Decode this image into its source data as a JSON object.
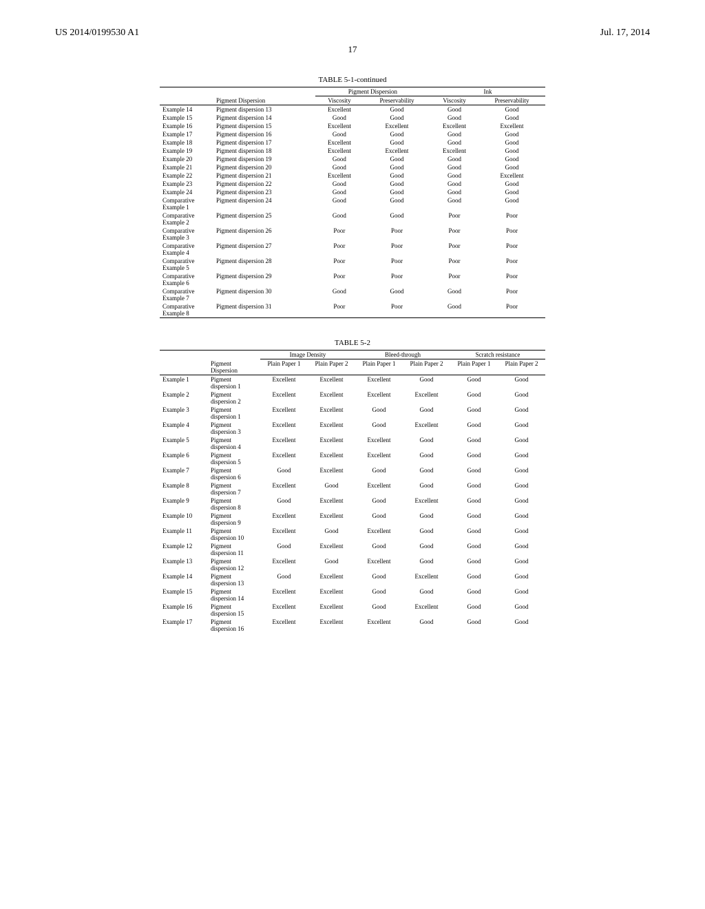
{
  "header": {
    "left": "US 2014/0199530 A1",
    "right": "Jul. 17, 2014"
  },
  "page_number": "17",
  "table1": {
    "title": "TABLE 5-1-continued",
    "group_headers": [
      "Pigment Dispersion",
      "Ink"
    ],
    "col_headers": [
      "",
      "Pigment Dispersion",
      "Viscosity",
      "Preservability",
      "Viscosity",
      "Preservability"
    ],
    "rows": [
      [
        "Example 14",
        "Pigment dispersion 13",
        "Excellent",
        "Good",
        "Good",
        "Good"
      ],
      [
        "Example 15",
        "Pigment dispersion 14",
        "Good",
        "Good",
        "Good",
        "Good"
      ],
      [
        "Example 16",
        "Pigment dispersion 15",
        "Excellent",
        "Excellent",
        "Excellent",
        "Excellent"
      ],
      [
        "Example 17",
        "Pigment dispersion 16",
        "Good",
        "Good",
        "Good",
        "Good"
      ],
      [
        "Example 18",
        "Pigment dispersion 17",
        "Excellent",
        "Good",
        "Good",
        "Good"
      ],
      [
        "Example 19",
        "Pigment dispersion 18",
        "Excellent",
        "Excellent",
        "Excellent",
        "Good"
      ],
      [
        "Example 20",
        "Pigment dispersion 19",
        "Good",
        "Good",
        "Good",
        "Good"
      ],
      [
        "Example 21",
        "Pigment dispersion 20",
        "Good",
        "Good",
        "Good",
        "Good"
      ],
      [
        "Example 22",
        "Pigment dispersion 21",
        "Excellent",
        "Good",
        "Good",
        "Excellent"
      ],
      [
        "Example 23",
        "Pigment dispersion 22",
        "Good",
        "Good",
        "Good",
        "Good"
      ],
      [
        "Example 24",
        "Pigment dispersion 23",
        "Good",
        "Good",
        "Good",
        "Good"
      ],
      [
        "Comparative Example 1",
        "Pigment dispersion 24",
        "Good",
        "Good",
        "Good",
        "Good"
      ],
      [
        "Comparative Example 2",
        "Pigment dispersion 25",
        "Good",
        "Good",
        "Poor",
        "Poor"
      ],
      [
        "Comparative Example 3",
        "Pigment dispersion 26",
        "Poor",
        "Poor",
        "Poor",
        "Poor"
      ],
      [
        "Comparative Example 4",
        "Pigment dispersion 27",
        "Poor",
        "Poor",
        "Poor",
        "Poor"
      ],
      [
        "Comparative Example 5",
        "Pigment dispersion 28",
        "Poor",
        "Poor",
        "Poor",
        "Poor"
      ],
      [
        "Comparative Example 6",
        "Pigment dispersion 29",
        "Poor",
        "Poor",
        "Poor",
        "Poor"
      ],
      [
        "Comparative Example 7",
        "Pigment dispersion 30",
        "Good",
        "Good",
        "Good",
        "Poor"
      ],
      [
        "Comparative Example 8",
        "Pigment dispersion 31",
        "Poor",
        "Poor",
        "Good",
        "Poor"
      ]
    ]
  },
  "table2": {
    "title": "TABLE 5-2",
    "group_headers": [
      "Image Density",
      "Bleed-through",
      "Scratch resistance"
    ],
    "col_headers": [
      "",
      "Pigment Dispersion",
      "Plain Paper 1",
      "Plain Paper 2",
      "Plain Paper 1",
      "Plain Paper 2",
      "Plain Paper 1",
      "Plain Paper 2"
    ],
    "rows": [
      [
        "Example 1",
        "Pigment dispersion 1",
        "Excellent",
        "Excellent",
        "Excellent",
        "Good",
        "Good",
        "Good"
      ],
      [
        "Example 2",
        "Pigment dispersion 2",
        "Excellent",
        "Excellent",
        "Excellent",
        "Excellent",
        "Good",
        "Good"
      ],
      [
        "Example 3",
        "Pigment dispersion 1",
        "Excellent",
        "Excellent",
        "Good",
        "Good",
        "Good",
        "Good"
      ],
      [
        "Example 4",
        "Pigment dispersion 3",
        "Excellent",
        "Excellent",
        "Good",
        "Excellent",
        "Good",
        "Good"
      ],
      [
        "Example 5",
        "Pigment dispersion 4",
        "Excellent",
        "Excellent",
        "Excellent",
        "Good",
        "Good",
        "Good"
      ],
      [
        "Example 6",
        "Pigment dispersion 5",
        "Excellent",
        "Excellent",
        "Excellent",
        "Good",
        "Good",
        "Good"
      ],
      [
        "Example 7",
        "Pigment dispersion 6",
        "Good",
        "Excellent",
        "Good",
        "Good",
        "Good",
        "Good"
      ],
      [
        "Example 8",
        "Pigment dispersion 7",
        "Excellent",
        "Good",
        "Excellent",
        "Good",
        "Good",
        "Good"
      ],
      [
        "Example 9",
        "Pigment dispersion 8",
        "Good",
        "Excellent",
        "Good",
        "Excellent",
        "Good",
        "Good"
      ],
      [
        "Example 10",
        "Pigment dispersion 9",
        "Excellent",
        "Excellent",
        "Good",
        "Good",
        "Good",
        "Good"
      ],
      [
        "Example 11",
        "Pigment dispersion 10",
        "Excellent",
        "Good",
        "Excellent",
        "Good",
        "Good",
        "Good"
      ],
      [
        "Example 12",
        "Pigment dispersion 11",
        "Good",
        "Excellent",
        "Good",
        "Good",
        "Good",
        "Good"
      ],
      [
        "Example 13",
        "Pigment dispersion 12",
        "Excellent",
        "Good",
        "Excellent",
        "Good",
        "Good",
        "Good"
      ],
      [
        "Example 14",
        "Pigment dispersion 13",
        "Good",
        "Excellent",
        "Good",
        "Excellent",
        "Good",
        "Good"
      ],
      [
        "Example 15",
        "Pigment dispersion 14",
        "Excellent",
        "Excellent",
        "Good",
        "Good",
        "Good",
        "Good"
      ],
      [
        "Example 16",
        "Pigment dispersion 15",
        "Excellent",
        "Excellent",
        "Good",
        "Excellent",
        "Good",
        "Good"
      ],
      [
        "Example 17",
        "Pigment dispersion 16",
        "Excellent",
        "Excellent",
        "Excellent",
        "Good",
        "Good",
        "Good"
      ]
    ]
  }
}
